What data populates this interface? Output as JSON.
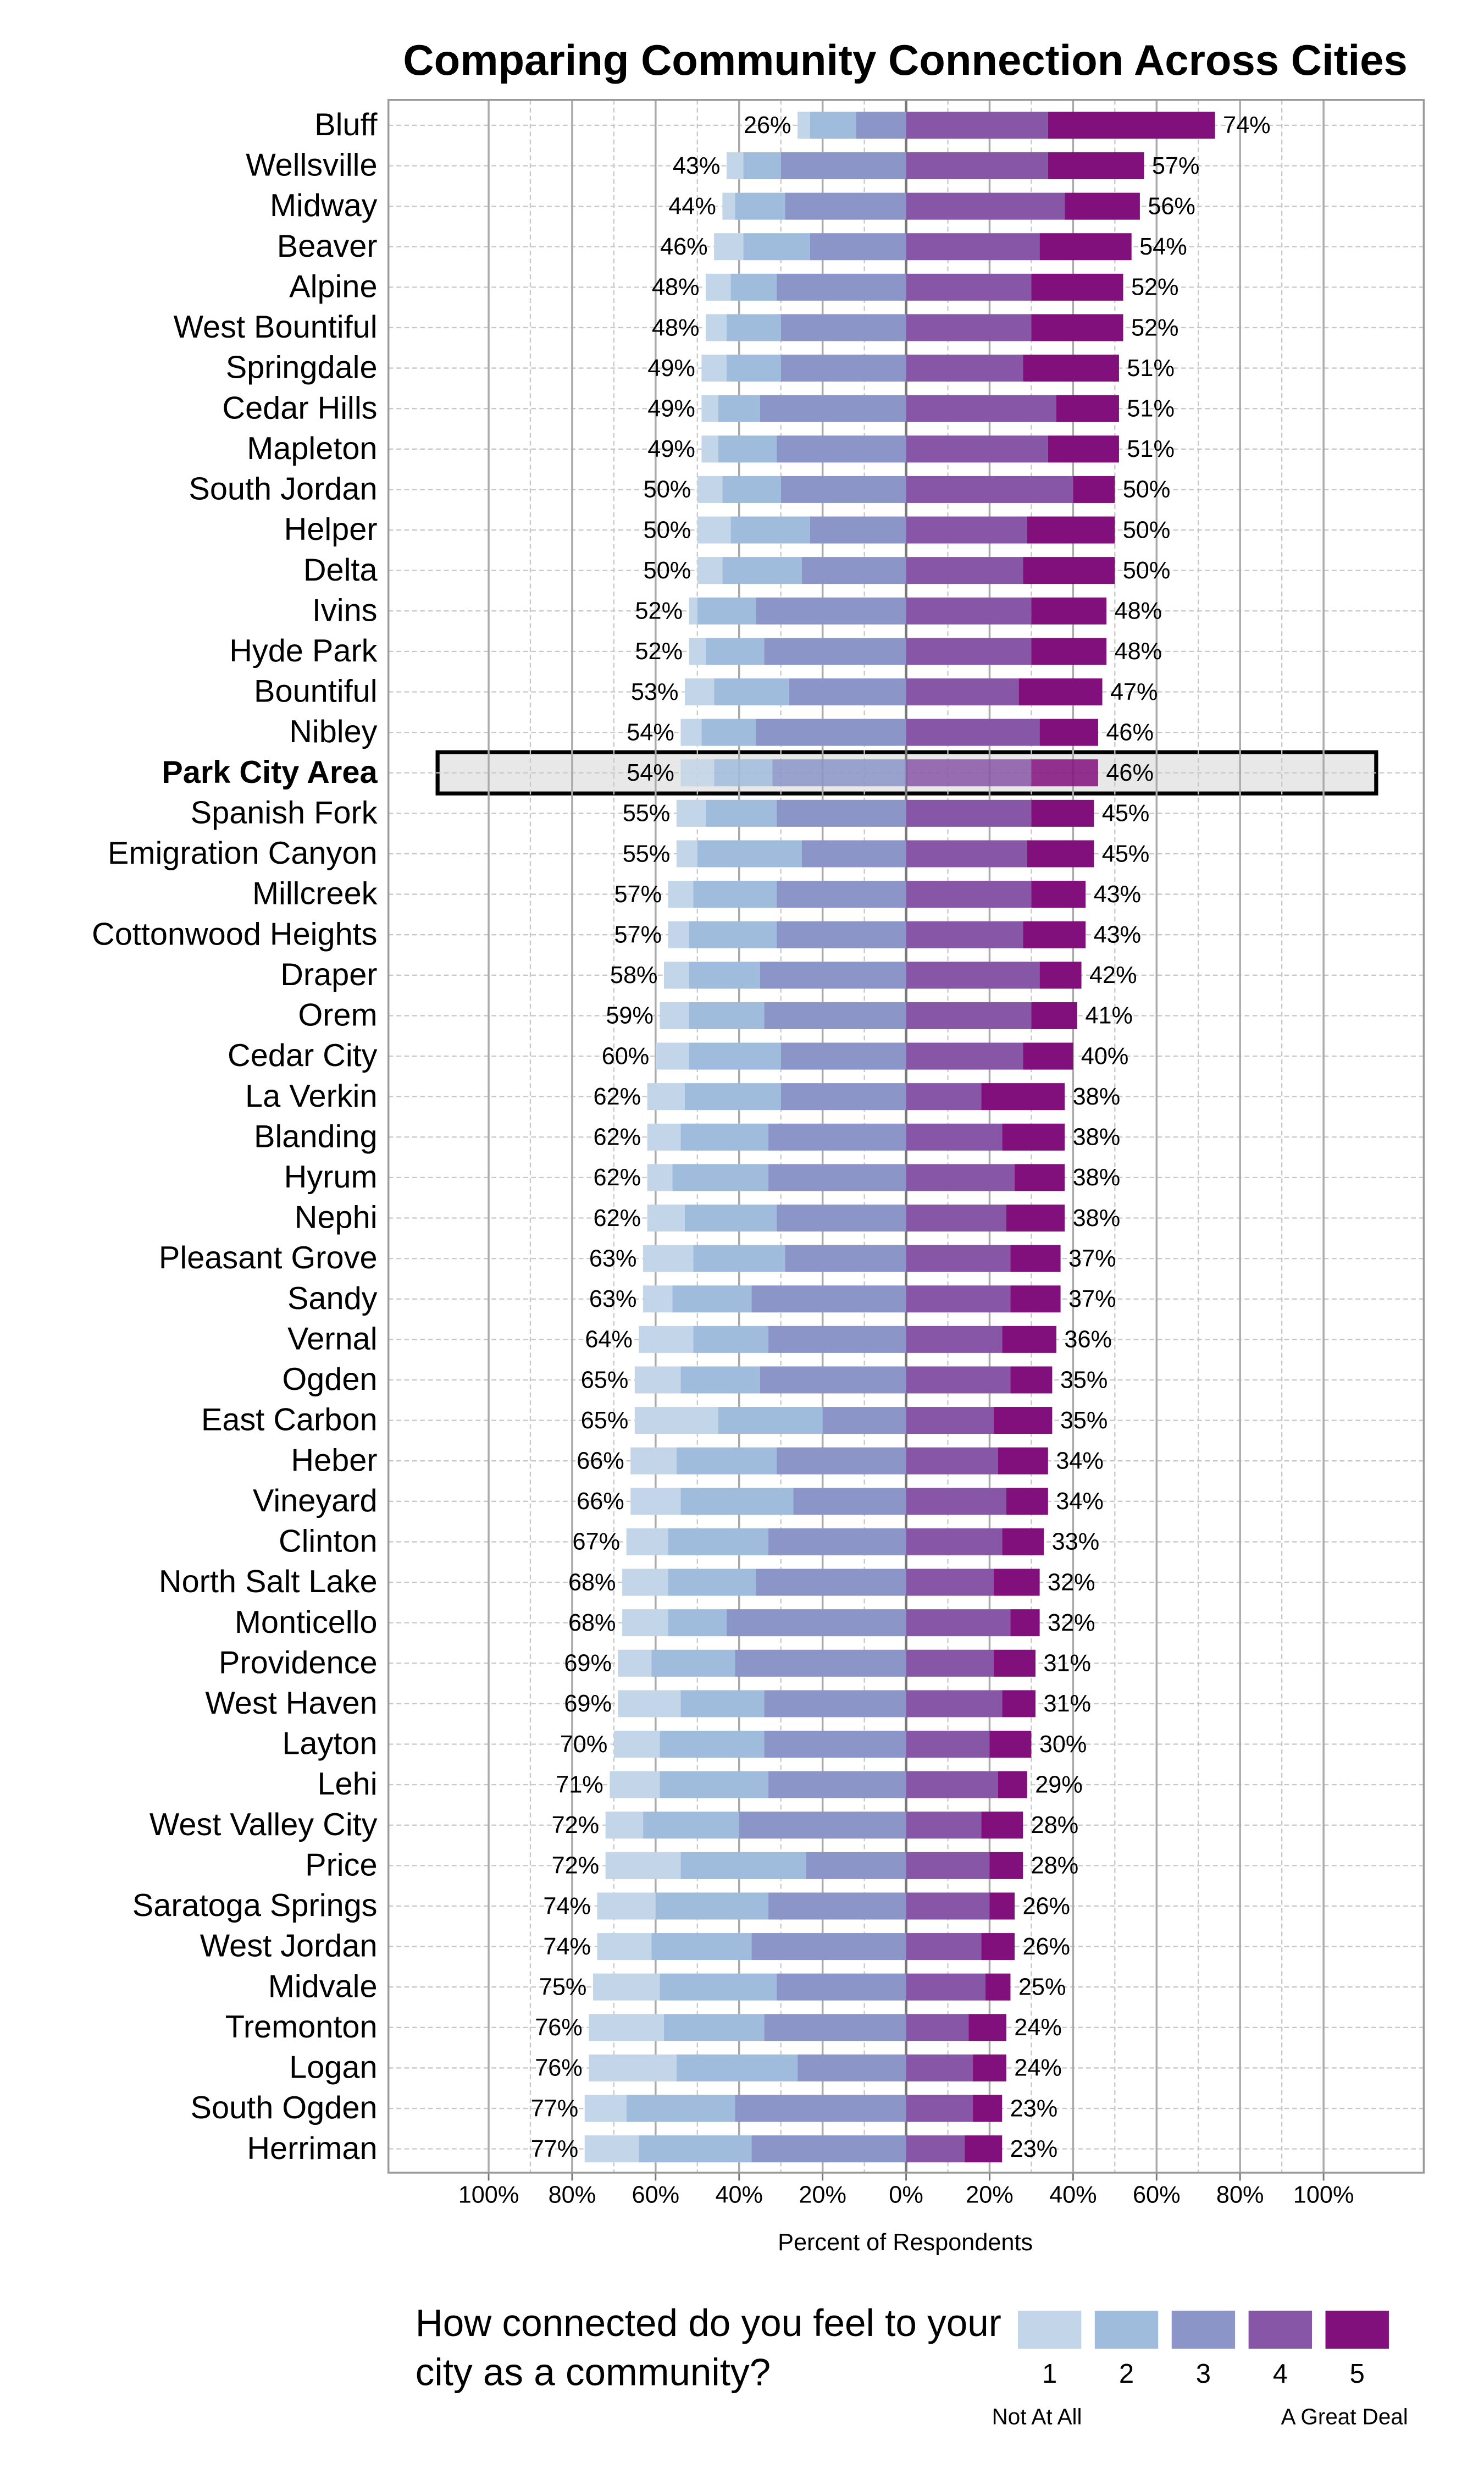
{
  "chart_data": {
    "type": "diverging-bar",
    "title": "Comparing Community Connection Across Cities",
    "x_label": "Percent of Respondents",
    "legend_title": "How connected do you feel to your city as a community?",
    "legend_low": "Not At All",
    "legend_high": "A Great Deal",
    "highlight": 16,
    "grid": true,
    "xlim": [
      -124,
      124
    ],
    "xticks": [
      {
        "value": -100,
        "label": "100%"
      },
      {
        "value": -80,
        "label": "80%"
      },
      {
        "value": -60,
        "label": "60%"
      },
      {
        "value": -40,
        "label": "40%"
      },
      {
        "value": -20,
        "label": "20%"
      },
      {
        "value": 0,
        "label": "0%"
      },
      {
        "value": 20,
        "label": "20%"
      },
      {
        "value": 40,
        "label": "40%"
      },
      {
        "value": 60,
        "label": "60%"
      },
      {
        "value": 80,
        "label": "80%"
      },
      {
        "value": 100,
        "label": "100%"
      }
    ],
    "categories": [
      "Bluff",
      "Wellsville",
      "Midway",
      "Beaver",
      "Alpine",
      "West Bountiful",
      "Springdale",
      "Cedar Hills",
      "Mapleton",
      "South Jordan",
      "Helper",
      "Delta",
      "Ivins",
      "Hyde Park",
      "Bountiful",
      "Nibley",
      "Park City Area",
      "Spanish Fork",
      "Emigration Canyon",
      "Millcreek",
      "Cottonwood Heights",
      "Draper",
      "Orem",
      "Cedar City",
      "La Verkin",
      "Blanding",
      "Hyrum",
      "Nephi",
      "Pleasant Grove",
      "Sandy",
      "Vernal",
      "Ogden",
      "East Carbon",
      "Heber",
      "Vineyard",
      "Clinton",
      "North Salt Lake",
      "Monticello",
      "Providence",
      "West Haven",
      "Layton",
      "Lehi",
      "West Valley City",
      "Price",
      "Saratoga Springs",
      "West Jordan",
      "Midvale",
      "Tremonton",
      "Logan",
      "South Ogden",
      "Herriman"
    ],
    "series": [
      {
        "name": "1",
        "side": "left",
        "color": "#c3d5e8",
        "values": [
          3,
          4,
          3,
          7,
          6,
          5,
          6,
          4,
          4,
          6,
          8,
          6,
          2,
          4,
          7,
          5,
          8,
          7,
          5,
          6,
          5,
          6,
          7,
          8,
          9,
          8,
          6,
          9,
          12,
          7,
          13,
          11,
          20,
          11,
          12,
          10,
          11,
          11,
          8,
          15,
          11,
          12,
          9,
          18,
          14,
          13,
          16,
          18,
          21,
          10,
          13
        ]
      },
      {
        "name": "2",
        "side": "left",
        "color": "#a0bcdc",
        "values": [
          11,
          9,
          12,
          16,
          11,
          13,
          13,
          10,
          14,
          14,
          19,
          19,
          14,
          14,
          18,
          13,
          14,
          17,
          25,
          20,
          21,
          17,
          18,
          22,
          23,
          21,
          23,
          22,
          22,
          19,
          18,
          19,
          25,
          24,
          27,
          24,
          21,
          14,
          20,
          20,
          25,
          26,
          23,
          30,
          27,
          24,
          28,
          24,
          29,
          26,
          27
        ]
      },
      {
        "name": "3",
        "side": "left",
        "color": "#8b95c8",
        "values": [
          12,
          30,
          29,
          23,
          31,
          30,
          30,
          35,
          31,
          30,
          23,
          25,
          36,
          34,
          28,
          36,
          32,
          31,
          25,
          31,
          31,
          35,
          34,
          30,
          30,
          33,
          33,
          31,
          29,
          37,
          33,
          35,
          20,
          31,
          27,
          33,
          36,
          43,
          41,
          34,
          34,
          33,
          40,
          24,
          33,
          37,
          31,
          34,
          26,
          41,
          37
        ]
      },
      {
        "name": "4",
        "side": "right",
        "color": "#8856a7",
        "values": [
          34,
          34,
          38,
          32,
          30,
          30,
          28,
          36,
          34,
          40,
          29,
          28,
          30,
          30,
          27,
          32,
          30,
          30,
          29,
          30,
          28,
          32,
          30,
          28,
          18,
          23,
          26,
          24,
          25,
          25,
          23,
          25,
          21,
          22,
          24,
          23,
          21,
          25,
          21,
          23,
          20,
          22,
          18,
          20,
          20,
          18,
          19,
          15,
          16,
          16,
          14
        ]
      },
      {
        "name": "5",
        "side": "right",
        "color": "#810f7c",
        "values": [
          40,
          23,
          18,
          22,
          22,
          22,
          23,
          15,
          17,
          10,
          21,
          22,
          18,
          18,
          20,
          14,
          16,
          15,
          16,
          13,
          15,
          10,
          11,
          12,
          20,
          15,
          12,
          14,
          12,
          12,
          13,
          10,
          14,
          12,
          10,
          10,
          11,
          7,
          10,
          8,
          10,
          7,
          10,
          8,
          6,
          8,
          6,
          9,
          8,
          7,
          9
        ]
      }
    ],
    "left_totals": {
      "values": [
        26,
        43,
        44,
        46,
        48,
        48,
        49,
        49,
        49,
        50,
        50,
        50,
        52,
        52,
        53,
        54,
        54,
        55,
        55,
        57,
        57,
        58,
        59,
        60,
        62,
        62,
        62,
        62,
        63,
        63,
        64,
        65,
        65,
        66,
        66,
        67,
        68,
        68,
        69,
        69,
        70,
        71,
        72,
        72,
        74,
        74,
        75,
        76,
        76,
        77,
        77
      ],
      "value_labels": [
        "26%",
        "43%",
        "44%",
        "46%",
        "48%",
        "48%",
        "49%",
        "49%",
        "49%",
        "50%",
        "50%",
        "50%",
        "52%",
        "52%",
        "53%",
        "54%",
        "54%",
        "55%",
        "55%",
        "57%",
        "57%",
        "58%",
        "59%",
        "60%",
        "62%",
        "62%",
        "62%",
        "62%",
        "63%",
        "63%",
        "64%",
        "65%",
        "65%",
        "66%",
        "66%",
        "67%",
        "68%",
        "68%",
        "69%",
        "69%",
        "70%",
        "71%",
        "72%",
        "72%",
        "74%",
        "74%",
        "75%",
        "76%",
        "76%",
        "77%",
        "77%"
      ]
    },
    "right_totals": {
      "values": [
        74,
        57,
        56,
        54,
        52,
        52,
        51,
        51,
        51,
        50,
        50,
        50,
        48,
        48,
        47,
        46,
        46,
        45,
        45,
        43,
        43,
        42,
        41,
        40,
        38,
        38,
        38,
        38,
        37,
        37,
        36,
        35,
        35,
        34,
        34,
        33,
        32,
        32,
        31,
        31,
        30,
        29,
        28,
        28,
        26,
        26,
        25,
        24,
        24,
        23,
        23
      ],
      "value_labels": [
        "74%",
        "57%",
        "56%",
        "54%",
        "52%",
        "52%",
        "51%",
        "51%",
        "51%",
        "50%",
        "50%",
        "50%",
        "48%",
        "48%",
        "47%",
        "46%",
        "46%",
        "45%",
        "45%",
        "43%",
        "43%",
        "42%",
        "41%",
        "40%",
        "38%",
        "38%",
        "38%",
        "38%",
        "37%",
        "37%",
        "36%",
        "35%",
        "35%",
        "34%",
        "34%",
        "33%",
        "32%",
        "32%",
        "31%",
        "31%",
        "30%",
        "29%",
        "28%",
        "28%",
        "26%",
        "26%",
        "25%",
        "24%",
        "24%",
        "23%",
        "23%"
      ]
    }
  }
}
